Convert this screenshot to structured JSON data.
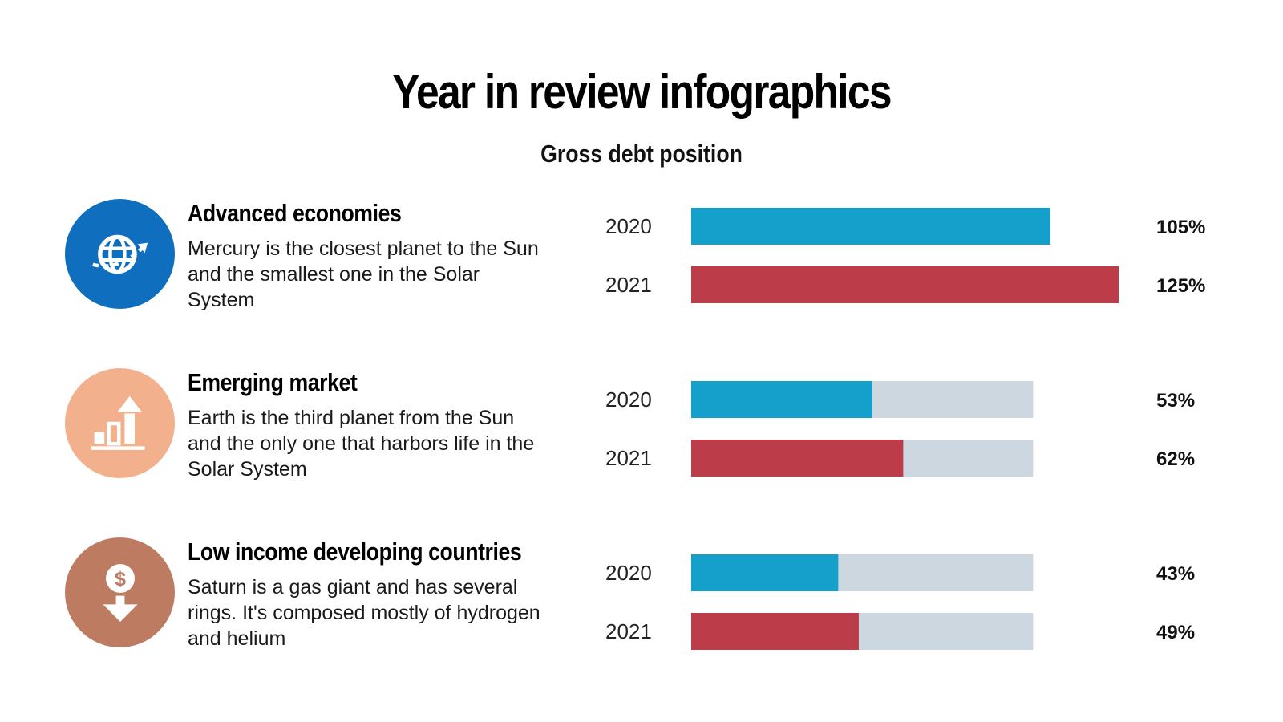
{
  "header": {
    "title": "Year in review infographics",
    "subtitle": "Gross debt position"
  },
  "colors": {
    "series_2020": "#15a0cc",
    "series_2021": "#bc3c4a",
    "track": "#ccd7e0"
  },
  "groups": [
    {
      "heading": "Advanced economies",
      "description": "Mercury is the closest planet to the Sun and the smallest one in the Solar System",
      "icon": "globe-arrow-icon",
      "icon_color": "#0f6fbe"
    },
    {
      "heading": "Emerging market",
      "description": "Earth is the third planet from the Sun and the only one that harbors life in the Solar System",
      "icon": "bar-chart-growth-icon",
      "icon_color": "#f2b08c"
    },
    {
      "heading": "Low income developing countries",
      "description": "Saturn is a gas giant and has several rings. It's composed mostly of hydrogen and helium",
      "icon": "dollar-down-icon",
      "icon_color": "#bd7b62"
    }
  ],
  "chart_data": {
    "type": "bar",
    "title": "Gross debt position",
    "categories": [
      "Advanced economies",
      "Emerging market",
      "Low income developing countries"
    ],
    "series": [
      {
        "name": "2020",
        "values": [
          105,
          53,
          43
        ],
        "labels": [
          "105%",
          "53%",
          "43%"
        ]
      },
      {
        "name": "2021",
        "values": [
          125,
          62,
          49
        ],
        "labels": [
          "125%",
          "62%",
          "49%"
        ]
      }
    ],
    "track_max": 100,
    "xlim": [
      0,
      125
    ]
  }
}
